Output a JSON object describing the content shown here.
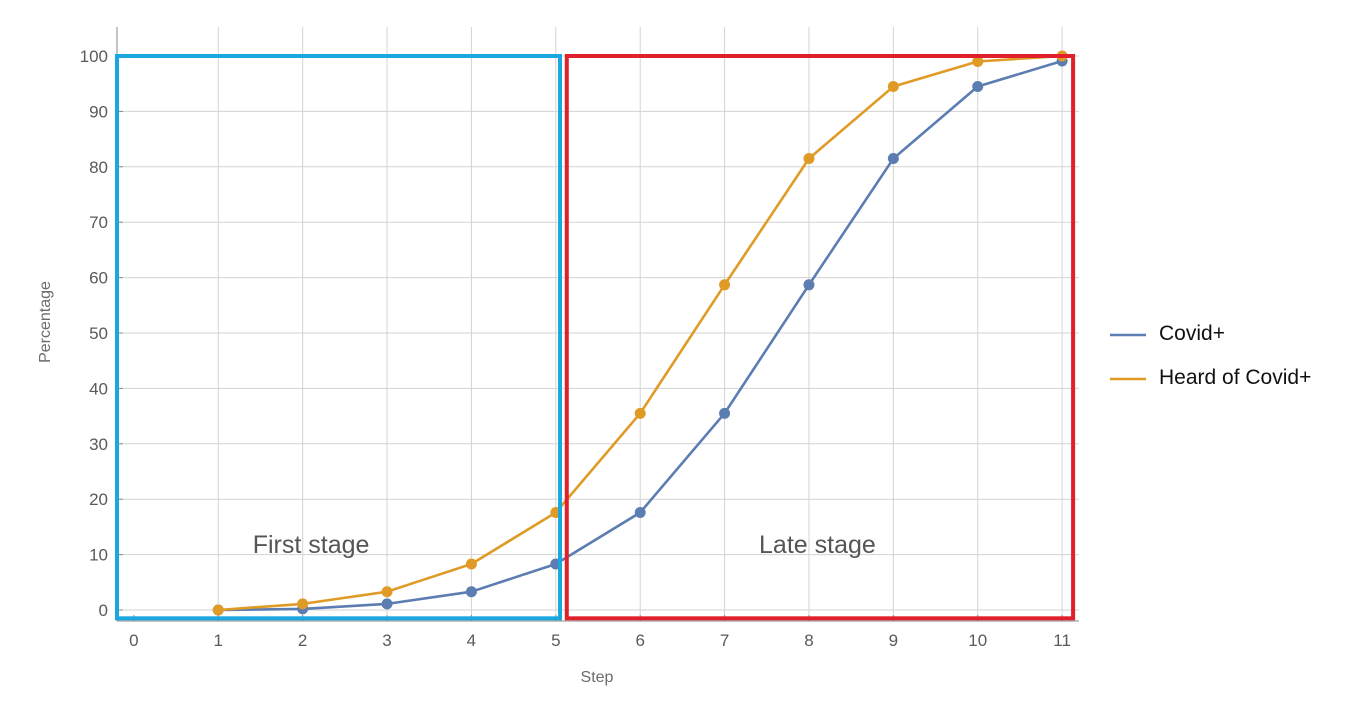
{
  "chart_data": {
    "type": "line",
    "title": "",
    "xlabel": "Step",
    "ylabel": "Percentage",
    "xlim": [
      -0.2,
      11.2
    ],
    "ylim": [
      -1.5,
      100
    ],
    "x_ticks": [
      0,
      1,
      2,
      3,
      4,
      5,
      6,
      7,
      8,
      9,
      10,
      11
    ],
    "y_ticks": [
      0,
      10,
      20,
      30,
      40,
      50,
      60,
      70,
      80,
      90,
      100
    ],
    "grid": true,
    "legend_position": "right",
    "x": [
      1,
      2,
      3,
      4,
      5,
      6,
      7,
      8,
      9,
      10,
      11
    ],
    "series": [
      {
        "name": "Covid+",
        "color": "#5b7db1",
        "values": [
          0.0,
          0.2,
          1.1,
          3.3,
          8.3,
          17.6,
          35.5,
          58.7,
          81.5,
          94.5,
          99.1
        ]
      },
      {
        "name": "Heard of Covid+",
        "color": "#e09b26",
        "values": [
          0.0,
          1.1,
          3.3,
          8.3,
          17.6,
          35.5,
          58.7,
          81.5,
          94.5,
          99.0,
          100.0
        ]
      }
    ],
    "regions": [
      {
        "label": "First stage",
        "color": "#1aa7e0",
        "x_range": [
          -0.2,
          5.05
        ],
        "y_range": [
          -1.5,
          100
        ]
      },
      {
        "label": "Late stage",
        "color": "#e0202a",
        "x_range": [
          5.13,
          11.13
        ],
        "y_range": [
          -1.5,
          100
        ]
      }
    ]
  }
}
